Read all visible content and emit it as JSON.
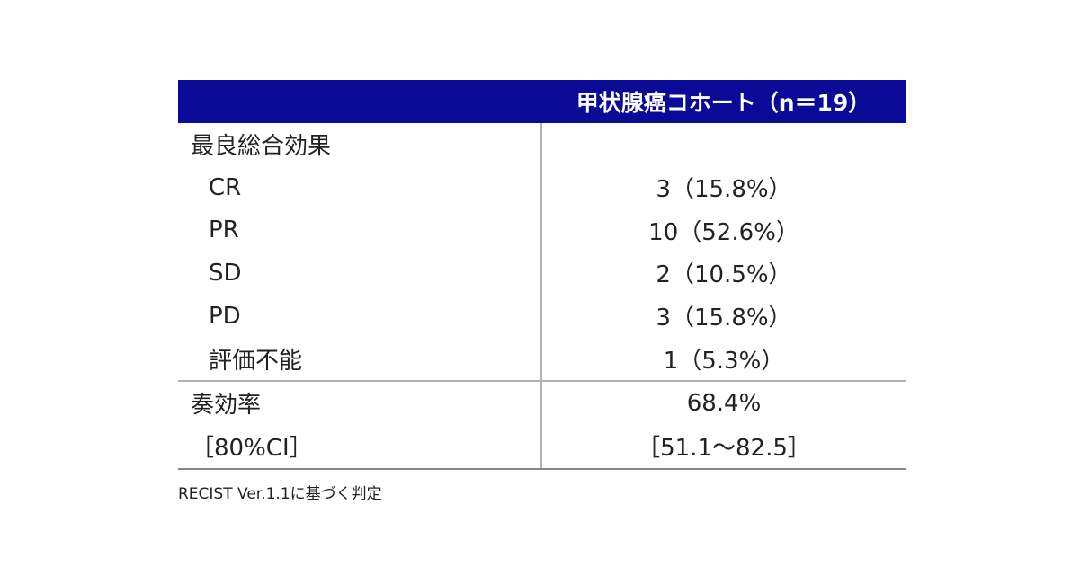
{
  "header": {
    "col1": "",
    "col2": "甲状腺癌コホート（n＝19）"
  },
  "rows": [
    {
      "label": "最良総合効果",
      "value": ""
    },
    {
      "label": "CR",
      "value": "3（15.8%）"
    },
    {
      "label": "PR",
      "value": "10（52.6%）"
    },
    {
      "label": "SD",
      "value": "2（10.5%）"
    },
    {
      "label": "PD",
      "value": "3（15.8%）"
    },
    {
      "label": "評価不能",
      "value": "1（5.3%）"
    },
    {
      "label": "奏効率",
      "value": "68.4%"
    },
    {
      "label": "［80%CI］",
      "value": "［51.1～82.5］"
    }
  ],
  "footnote": "RECIST Ver.1.1に基づく判定",
  "colors": {
    "header_bg": "#0a0a96",
    "header_text": "#ffffff",
    "rule": "#b3b3b3"
  }
}
